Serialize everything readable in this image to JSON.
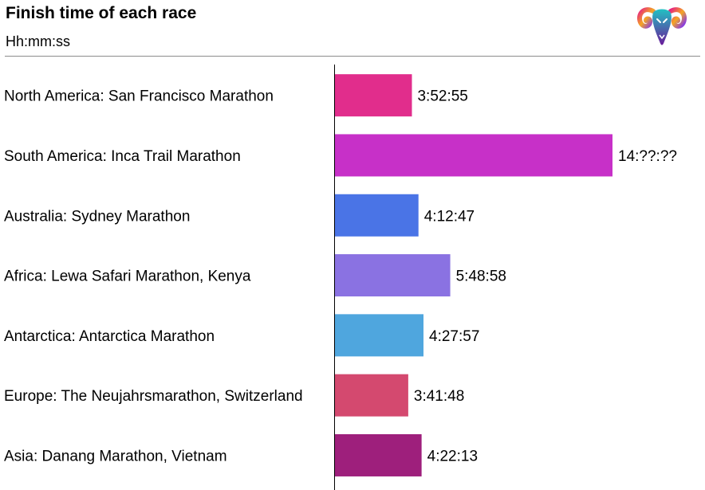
{
  "header": {
    "title": "Finish time of each race",
    "subtitle": "Hh:mm:ss"
  },
  "logo": {
    "icon": "ram-head-icon"
  },
  "chart_data": {
    "type": "bar",
    "orientation": "horizontal",
    "title": "Finish time of each race",
    "subtitle": "Hh:mm:ss",
    "unit": "hours",
    "categories": [
      "North America: San Francisco Marathon",
      "South America: Inca Trail Marathon",
      "Australia: Sydney Marathon",
      "Africa: Lewa Safari Marathon, Kenya",
      "Antarctica: Antarctica Marathon",
      "Europe: The Neujahrsmarathon, Switzerland",
      "Asia: Danang Marathon, Vietnam"
    ],
    "values": [
      3.882,
      14.0,
      4.213,
      5.816,
      4.466,
      3.697,
      4.37
    ],
    "value_labels": [
      "3:52:55",
      "14:??:??",
      "4:12:47",
      "5:48:58",
      "4:27:57",
      "3:41:48",
      "4:22:13"
    ],
    "colors": [
      "#e12d8c",
      "#c730c8",
      "#4a74e6",
      "#8a72e2",
      "#4fa6de",
      "#d4496f",
      "#9e1f7c"
    ],
    "xlim": [
      0,
      14
    ],
    "grid": false,
    "legend": "none"
  }
}
